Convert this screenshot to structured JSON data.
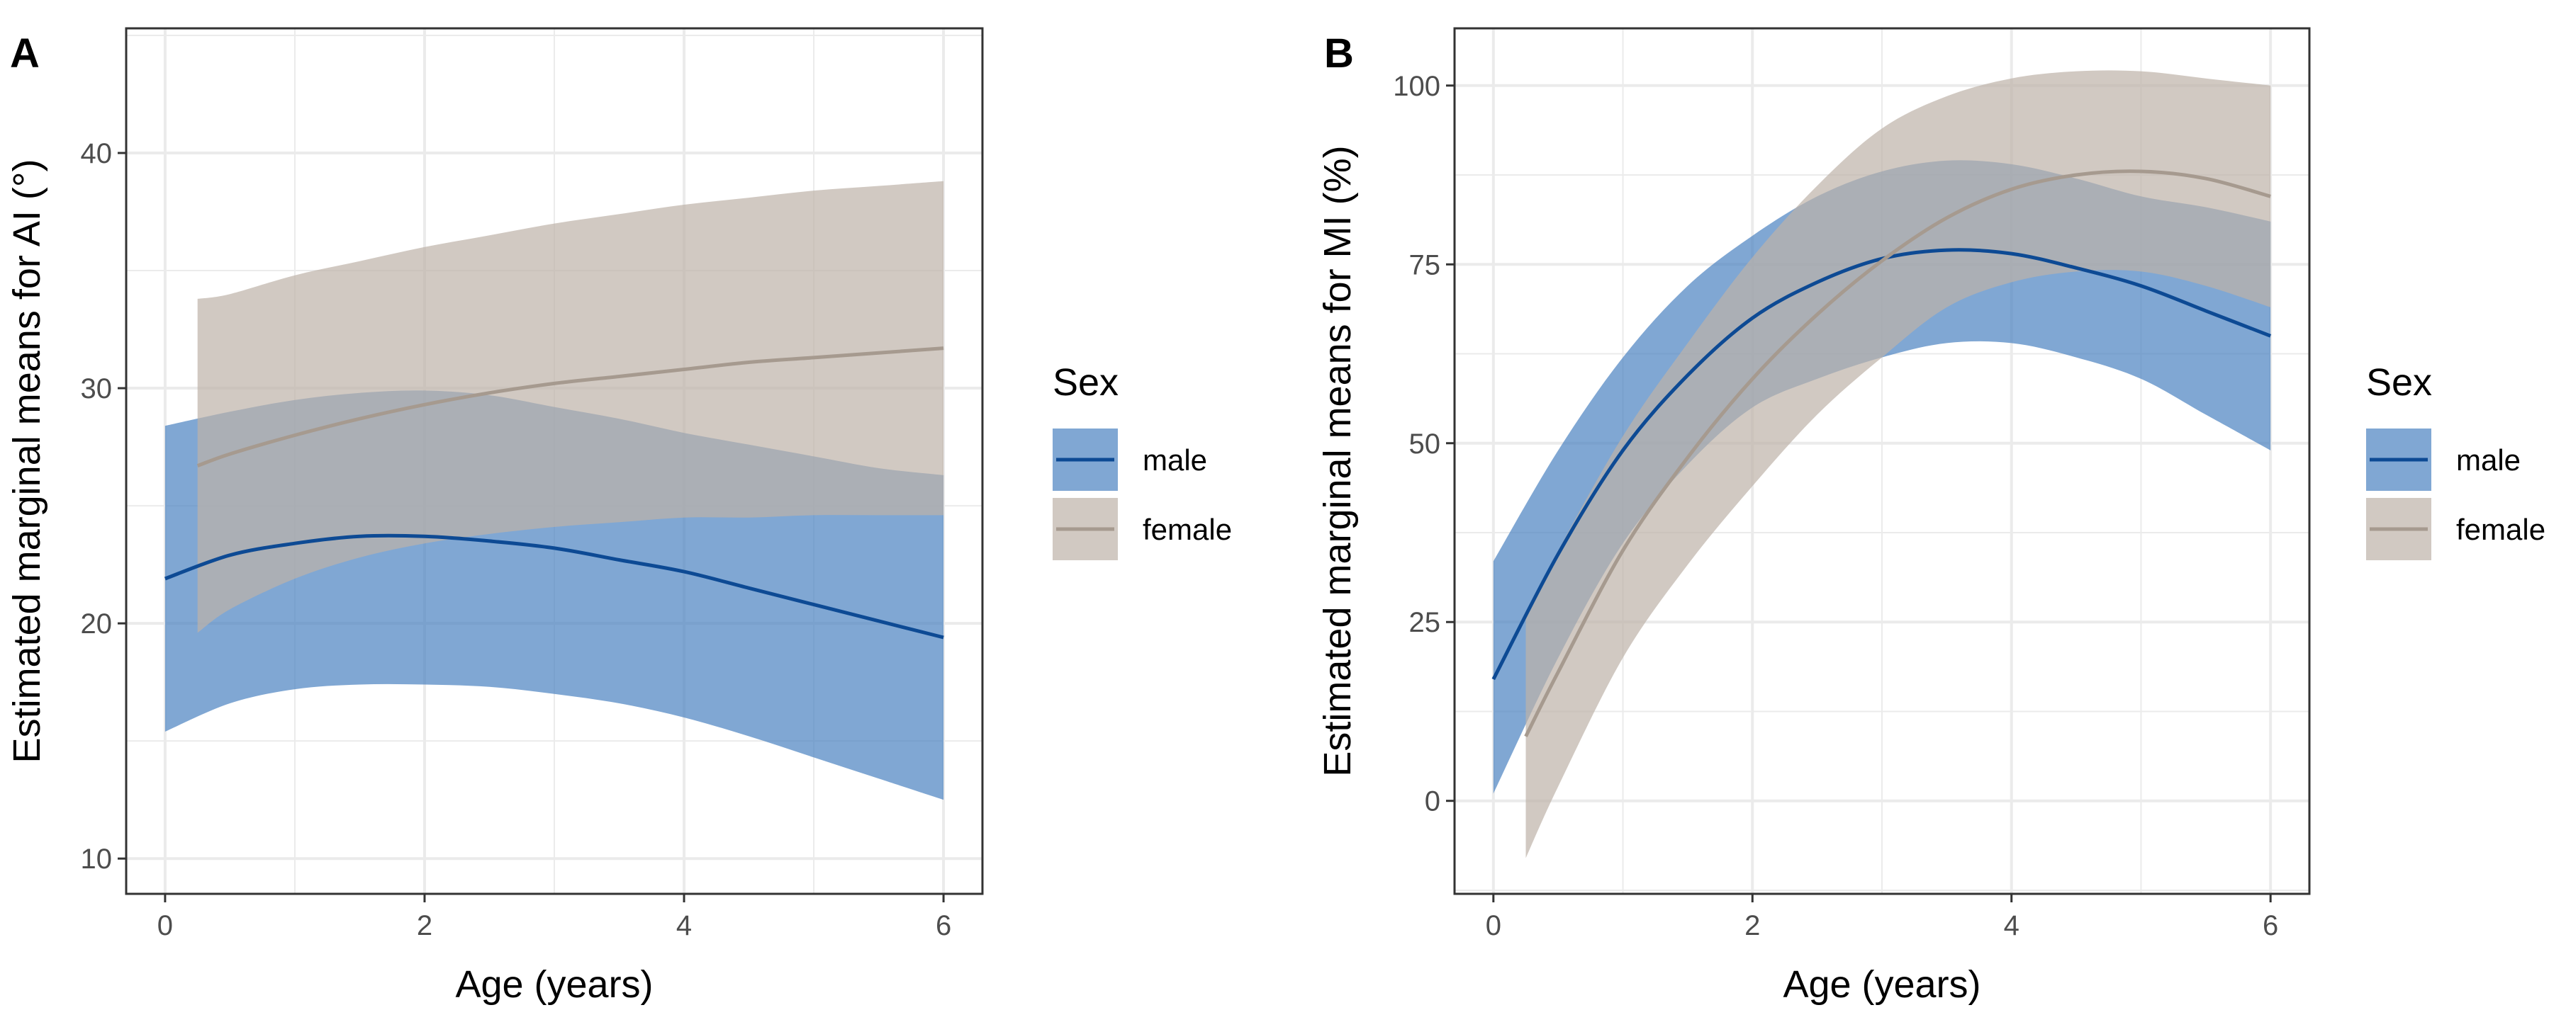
{
  "colors": {
    "male_line": "#0d4a94",
    "male_band": "#4a82c0",
    "female_line": "#a69a8f",
    "female_band": "#bdb2a8",
    "grid": "#ebebeb",
    "panel_border": "#333333",
    "legend_key_bg": "#f2f2f2"
  },
  "chart_data": [
    {
      "panel": "A",
      "type": "line",
      "title": "",
      "xlabel": "Age (years)",
      "ylabel": "Estimated marginal means for AI (°)",
      "xlim": [
        -0.3,
        6.3
      ],
      "ylim": [
        8.5,
        45.3
      ],
      "x_ticks": [
        0,
        2,
        4,
        6
      ],
      "y_ticks": [
        10,
        20,
        30,
        40
      ],
      "legend": {
        "title": "Sex",
        "entries": [
          "male",
          "female"
        ],
        "position": "right"
      },
      "series": [
        {
          "name": "male",
          "x": [
            0,
            0.5,
            1,
            1.5,
            2,
            2.5,
            3,
            3.5,
            4,
            4.5,
            5,
            5.5,
            6
          ],
          "y": [
            21.9,
            22.9,
            23.4,
            23.7,
            23.7,
            23.5,
            23.2,
            22.7,
            22.2,
            21.5,
            20.8,
            20.1,
            19.4
          ],
          "lower": [
            15.4,
            16.6,
            17.2,
            17.4,
            17.4,
            17.3,
            17.0,
            16.6,
            16.0,
            15.2,
            14.3,
            13.4,
            12.5
          ],
          "upper": [
            28.4,
            29.0,
            29.5,
            29.8,
            29.9,
            29.7,
            29.2,
            28.7,
            28.1,
            27.6,
            27.1,
            26.6,
            26.3
          ]
        },
        {
          "name": "female",
          "x": [
            0.25,
            0.5,
            1,
            1.5,
            2,
            2.5,
            3,
            3.5,
            4,
            4.5,
            5,
            5.5,
            6
          ],
          "y": [
            26.7,
            27.2,
            28.0,
            28.7,
            29.3,
            29.8,
            30.2,
            30.5,
            30.8,
            31.1,
            31.3,
            31.5,
            31.7
          ],
          "lower": [
            19.6,
            20.6,
            21.9,
            22.8,
            23.4,
            23.8,
            24.1,
            24.3,
            24.5,
            24.5,
            24.6,
            24.6,
            24.6
          ],
          "upper": [
            33.8,
            34.0,
            34.8,
            35.4,
            36.0,
            36.5,
            37.0,
            37.4,
            37.8,
            38.1,
            38.4,
            38.6,
            38.8
          ]
        }
      ]
    },
    {
      "panel": "B",
      "type": "line",
      "title": "",
      "xlabel": "Age (years)",
      "ylabel": "Estimated marginal means for MI (%)",
      "xlim": [
        -0.3,
        6.3
      ],
      "ylim": [
        -13,
        108
      ],
      "x_ticks": [
        0,
        2,
        4,
        6
      ],
      "y_ticks": [
        0,
        25,
        50,
        75,
        100
      ],
      "legend": {
        "title": "Sex",
        "entries": [
          "male",
          "female"
        ],
        "position": "right"
      },
      "series": [
        {
          "name": "male",
          "x": [
            0,
            0.5,
            1,
            1.5,
            2,
            2.5,
            3,
            3.5,
            4,
            4.5,
            5,
            5.5,
            6
          ],
          "y": [
            17,
            34.5,
            49,
            59.5,
            67.5,
            72.5,
            75.8,
            77,
            76.5,
            74.5,
            72,
            68.5,
            65
          ],
          "lower": [
            1,
            20,
            36,
            47,
            55,
            59,
            62,
            64,
            64,
            62,
            59,
            54,
            49
          ],
          "upper": [
            33.5,
            49,
            62,
            72,
            79,
            84.5,
            88,
            89.5,
            89,
            87,
            84.5,
            83,
            81
          ]
        },
        {
          "name": "female",
          "x": [
            0.25,
            0.5,
            1,
            1.5,
            2,
            2.5,
            3,
            3.5,
            4,
            4.5,
            5,
            5.5,
            6
          ],
          "y": [
            9,
            18,
            35,
            48,
            59,
            68,
            75.5,
            81.5,
            85.5,
            87.5,
            88,
            87,
            84.5
          ],
          "lower": [
            -8,
            2,
            20,
            33,
            44,
            54,
            62,
            69,
            72.5,
            74,
            74,
            72,
            69
          ],
          "upper": [
            26,
            35,
            51,
            64,
            76,
            86,
            94,
            98.5,
            101,
            102,
            102,
            101,
            100
          ]
        }
      ]
    }
  ]
}
